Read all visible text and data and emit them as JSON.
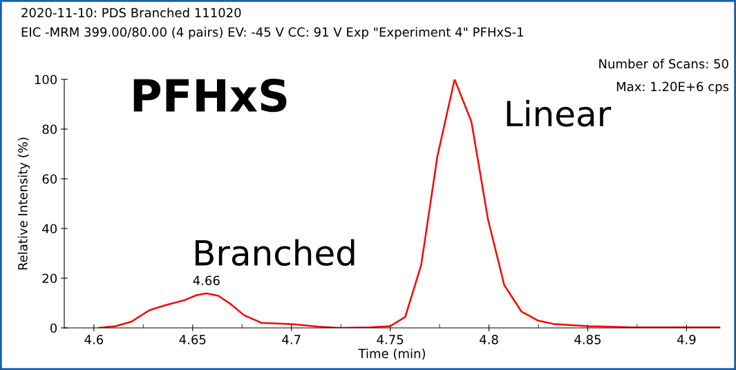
{
  "chart_data": {
    "type": "line",
    "title": "2020-11-10: PDS Branched 111020",
    "subtitle": "EIC -MRM 399.00/80.00 (4 pairs) EV: -45 V CC: 91 V Exp \"Experiment 4\" PFHxS-1",
    "xlabel": "Time (min)",
    "ylabel": "Relative Intensity (%)",
    "x": [
      4.6025,
      4.611,
      4.619,
      4.628,
      4.636,
      4.646,
      4.652,
      4.657,
      4.663,
      4.669,
      4.676,
      4.685,
      4.7,
      4.714,
      4.724,
      4.74,
      4.75,
      4.7576,
      4.7657,
      4.7739,
      4.7826,
      4.7911,
      4.7995,
      4.8077,
      4.8164,
      4.8246,
      4.8333,
      4.85,
      4.87,
      4.917
    ],
    "series": [
      {
        "color": "#ff0000",
        "values": [
          0,
          0.7,
          2.5,
          7.1,
          9.1,
          11.2,
          13.2,
          13.9,
          12.9,
          9.7,
          5.1,
          2.0,
          1.5,
          0.5,
          0,
          0.2,
          0.7,
          4.4,
          25.4,
          69.1,
          100,
          83.0,
          43.7,
          17.3,
          6.6,
          3.0,
          1.5,
          0.7,
          0.3,
          0.2
        ]
      }
    ],
    "xlim": [
      4.585,
      4.917
    ],
    "ylim": [
      0,
      100
    ],
    "xticks": [
      4.6,
      {
        "value": 4.625,
        "label": null
      },
      4.65,
      {
        "value": 4.675,
        "label": null
      },
      4.7,
      {
        "value": 4.725,
        "label": null
      },
      4.75,
      {
        "value": 4.775,
        "label": null
      },
      4.8,
      {
        "value": 4.825,
        "label": null
      },
      4.85,
      {
        "value": 4.875,
        "label": null
      },
      4.9
    ],
    "yticks": [
      0,
      20,
      40,
      60,
      80,
      100
    ],
    "grid": false,
    "marker": "none",
    "line_style": "solid",
    "annotations": [
      {
        "text": "4.66",
        "x": 4.657,
        "y": 13.9
      },
      "PFHxS",
      "Branched",
      "Linear",
      "Number of Scans: 50",
      "Max: 1.20E+6 cps"
    ]
  }
}
